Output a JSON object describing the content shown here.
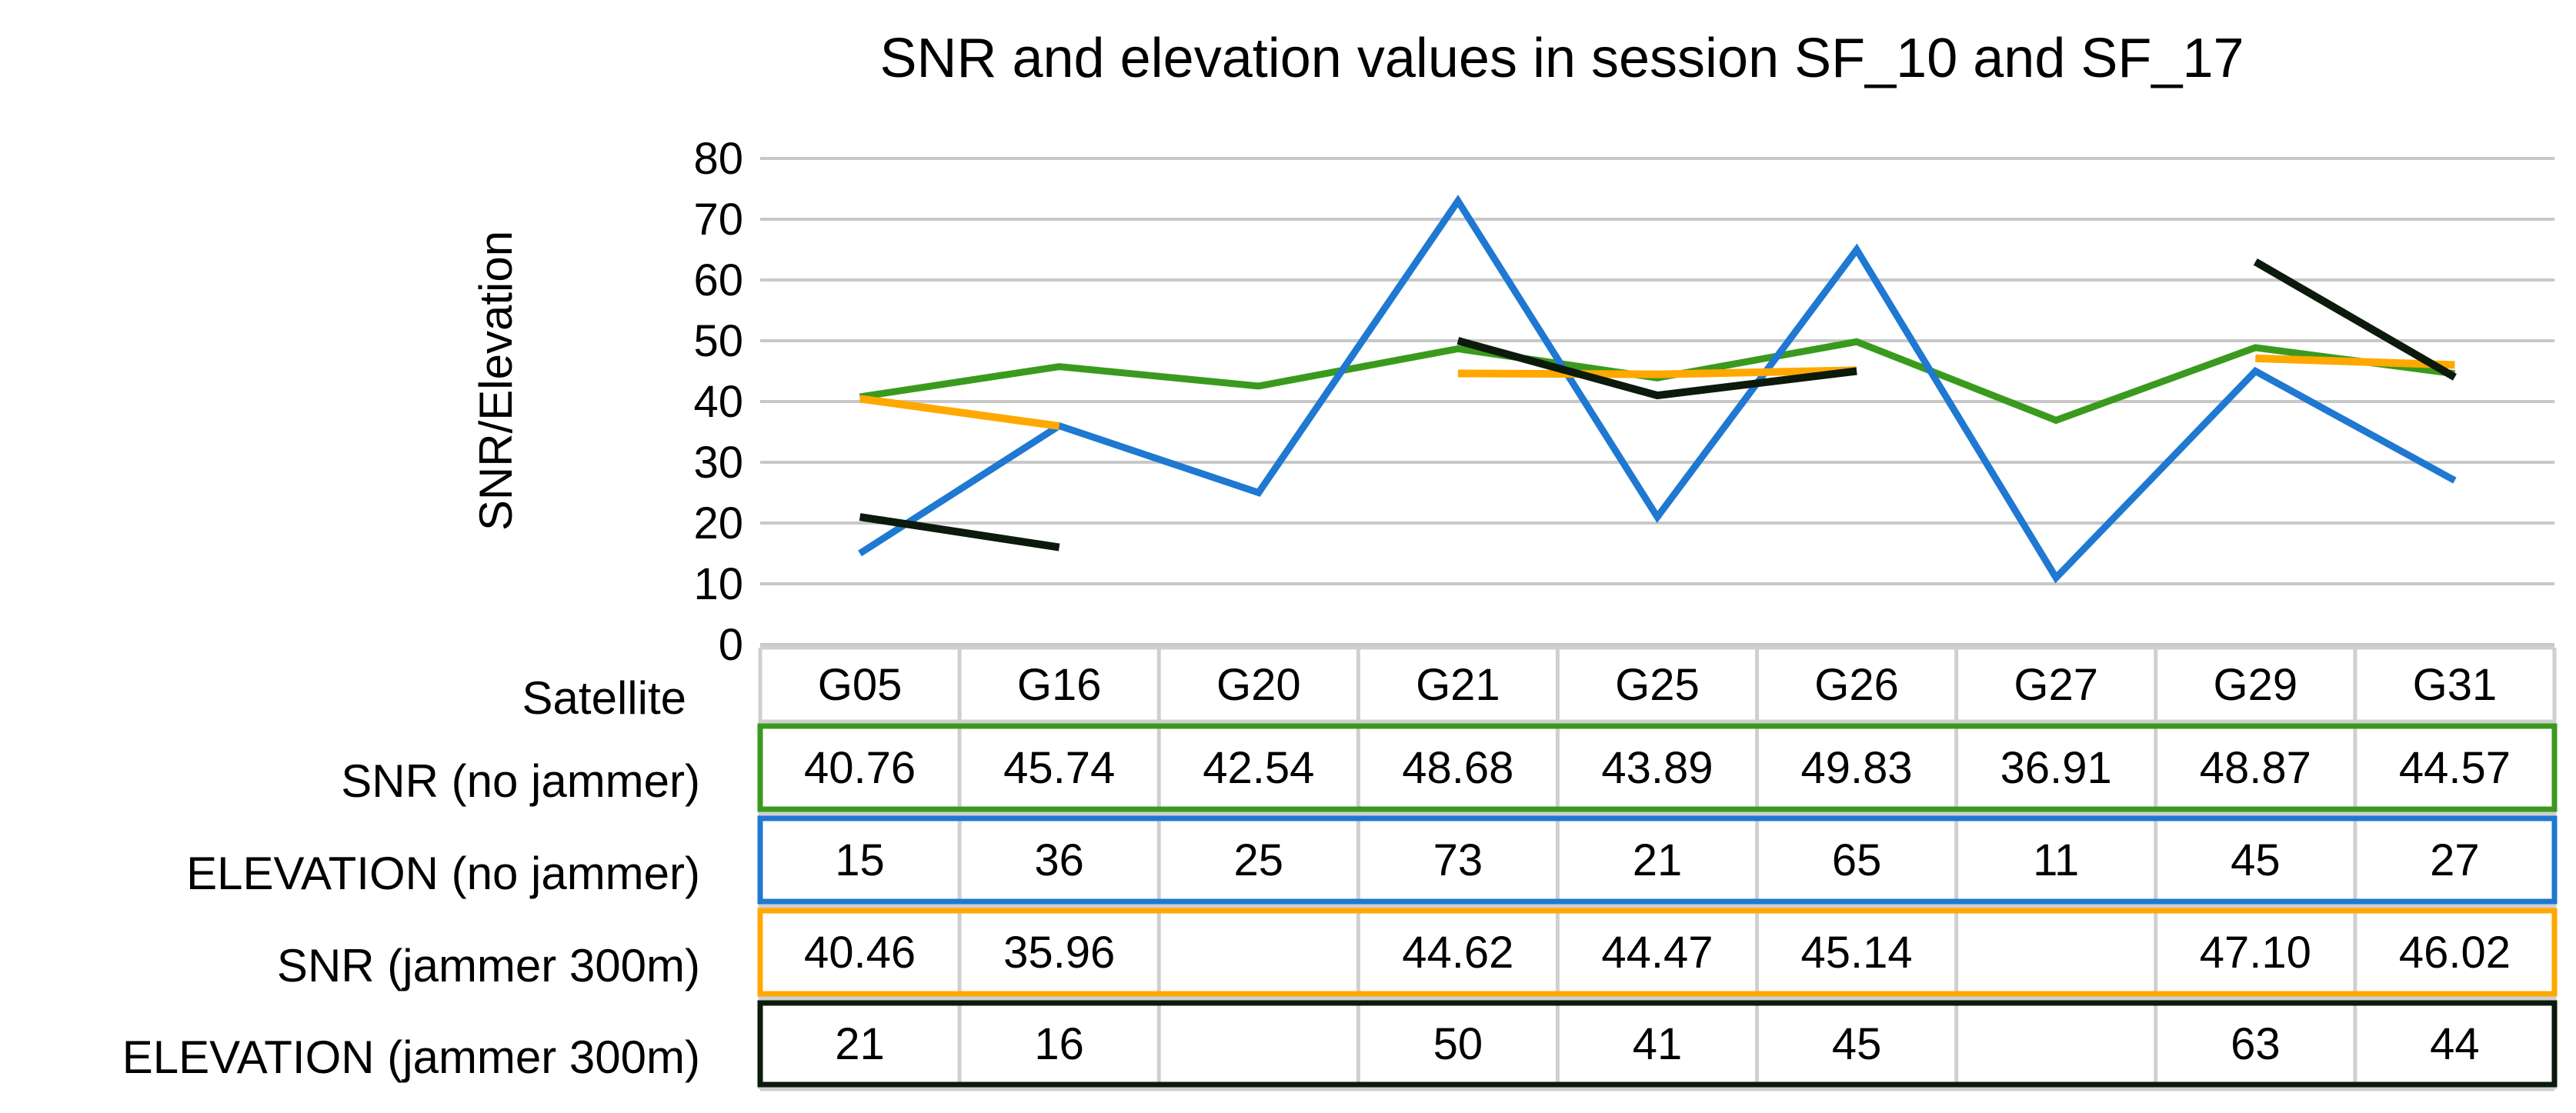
{
  "chart_data": {
    "type": "line",
    "title": "SNR and elevation values in session SF_10 and SF_17",
    "xlabel": "",
    "ylabel": "SNR/Elevation",
    "ylim": [
      0,
      80
    ],
    "yticks": [
      0,
      10,
      20,
      30,
      40,
      50,
      60,
      70,
      80
    ],
    "grid": true,
    "categories": [
      "G05",
      "G16",
      "G20",
      "G21",
      "G25",
      "G26",
      "G27",
      "G29",
      "G31"
    ],
    "table_header_label": "Satellite",
    "series": [
      {
        "name": "SNR (no jammer)",
        "color": "#3A9A1E",
        "values": [
          40.76,
          45.74,
          42.54,
          48.68,
          43.89,
          49.83,
          36.91,
          48.87,
          44.57
        ],
        "labels": [
          "40.76",
          "45.74",
          "42.54",
          "48.68",
          "43.89",
          "49.83",
          "36.91",
          "48.87",
          "44.57"
        ]
      },
      {
        "name": "ELEVATION (no jammer)",
        "color": "#1F78D1",
        "values": [
          15,
          36,
          25,
          73,
          21,
          65,
          11,
          45,
          27
        ],
        "labels": [
          "15",
          "36",
          "25",
          "73",
          "21",
          "65",
          "11",
          "45",
          "27"
        ]
      },
      {
        "name": "SNR (jammer 300m)",
        "color": "#FFA800",
        "values": [
          40.46,
          35.96,
          null,
          44.62,
          44.47,
          45.14,
          null,
          47.1,
          46.02
        ],
        "labels": [
          "40.46",
          "35.96",
          "",
          "44.62",
          "44.47",
          "45.14",
          "",
          "47.10",
          "46.02"
        ]
      },
      {
        "name": "ELEVATION (jammer 300m)",
        "color": "#0B1A0B",
        "values": [
          21,
          16,
          null,
          50,
          41,
          45,
          null,
          63,
          44
        ],
        "labels": [
          "21",
          "16",
          "",
          "50",
          "41",
          "45",
          "",
          "63",
          "44"
        ]
      }
    ]
  }
}
